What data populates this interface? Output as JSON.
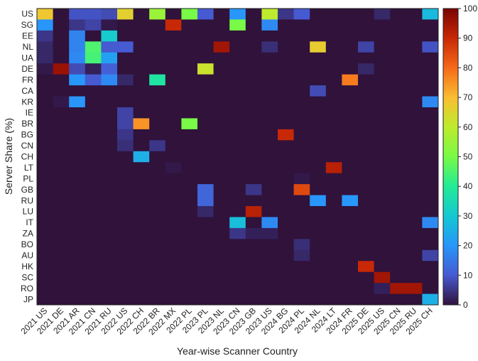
{
  "chart_data": {
    "type": "heatmap",
    "title": "",
    "xlabel": "Year-wise Scanner Country",
    "ylabel": "Server Share (%)",
    "x": [
      "2021 US",
      "2021 DE",
      "2021 AR",
      "2021 CN",
      "2021 RU",
      "2022 US",
      "2022 CH",
      "2022 BR",
      "2022 MX",
      "2022 PL",
      "2023 PL",
      "2023 NL",
      "2023 CN",
      "2023 GB",
      "2023 US",
      "2024 BG",
      "2024 PL",
      "2024 NL",
      "2024 LT",
      "2024 FR",
      "2025 DE",
      "2025 US",
      "2025 CN",
      "2025 RU",
      "2025 CH"
    ],
    "y": [
      "US",
      "SG",
      "EE",
      "NL",
      "UA",
      "DE",
      "FR",
      "CA",
      "KR",
      "IE",
      "BR",
      "BG",
      "CN",
      "CH",
      "LT",
      "PL",
      "GB",
      "RU",
      "LU",
      "IT",
      "ZA",
      "BO",
      "AU",
      "HK",
      "SC",
      "RO",
      "JP"
    ],
    "colorbar": {
      "range": [
        0,
        100
      ],
      "ticks": [
        0,
        10,
        20,
        30,
        40,
        50,
        60,
        70,
        80,
        90,
        100
      ],
      "colormap": "turbo"
    },
    "values": [
      [
        68,
        0,
        9,
        9,
        8,
        66,
        0,
        55,
        0,
        50,
        10,
        0,
        20,
        0,
        60,
        5,
        10,
        0,
        0,
        0,
        0,
        3,
        0,
        0,
        27
      ],
      [
        20,
        0,
        5,
        7,
        1,
        0,
        0,
        0,
        90,
        0,
        0,
        0,
        50,
        0,
        18,
        0,
        0,
        0,
        0,
        0,
        0,
        0,
        0,
        0,
        0
      ],
      [
        5,
        0,
        17,
        0,
        31,
        0,
        0,
        0,
        0,
        0,
        0,
        0,
        0,
        0,
        0,
        0,
        0,
        0,
        0,
        0,
        0,
        0,
        0,
        0,
        0
      ],
      [
        3,
        0,
        17,
        45,
        10,
        10,
        0,
        0,
        0,
        0,
        0,
        95,
        0,
        0,
        4,
        0,
        0,
        67,
        0,
        0,
        7,
        0,
        0,
        0,
        9
      ],
      [
        3,
        0,
        18,
        44,
        22,
        0,
        0,
        0,
        0,
        0,
        0,
        0,
        0,
        0,
        0,
        0,
        0,
        0,
        0,
        0,
        0,
        0,
        0,
        0,
        0
      ],
      [
        1,
        96,
        8,
        2,
        11,
        0,
        0,
        0,
        0,
        0,
        62,
        0,
        0,
        0,
        0,
        0,
        0,
        0,
        0,
        0,
        3,
        0,
        0,
        0,
        0
      ],
      [
        0,
        0,
        20,
        10,
        18,
        3,
        0,
        38,
        0,
        0,
        0,
        0,
        0,
        0,
        0,
        0,
        0,
        0,
        0,
        78,
        0,
        0,
        0,
        0,
        0
      ],
      [
        0,
        0,
        0,
        0,
        0,
        0,
        0,
        0,
        0,
        0,
        0,
        0,
        0,
        0,
        0,
        0,
        0,
        8,
        0,
        0,
        0,
        0,
        0,
        0,
        0
      ],
      [
        0,
        1,
        20,
        0,
        0,
        0,
        0,
        0,
        0,
        0,
        0,
        0,
        0,
        0,
        0,
        0,
        0,
        0,
        0,
        0,
        0,
        0,
        0,
        0,
        18
      ],
      [
        0,
        0,
        0,
        0,
        0,
        7,
        0,
        0,
        0,
        0,
        0,
        0,
        0,
        0,
        0,
        0,
        0,
        0,
        0,
        0,
        0,
        0,
        0,
        0,
        0
      ],
      [
        0,
        0,
        0,
        0,
        0,
        7,
        75,
        0,
        0,
        50,
        0,
        0,
        0,
        0,
        0,
        0,
        0,
        0,
        0,
        0,
        0,
        0,
        0,
        0,
        0
      ],
      [
        0,
        0,
        0,
        0,
        0,
        5,
        0,
        0,
        0,
        0,
        0,
        0,
        0,
        0,
        0,
        90,
        0,
        0,
        0,
        0,
        0,
        0,
        0,
        0,
        0
      ],
      [
        0,
        0,
        0,
        0,
        0,
        4,
        0,
        5,
        0,
        0,
        0,
        0,
        0,
        0,
        0,
        0,
        0,
        0,
        0,
        0,
        0,
        0,
        0,
        0,
        0
      ],
      [
        0,
        0,
        0,
        0,
        0,
        0,
        25,
        0,
        0,
        0,
        0,
        0,
        0,
        0,
        0,
        0,
        0,
        0,
        0,
        0,
        0,
        0,
        0,
        0,
        0
      ],
      [
        0,
        0,
        0,
        0,
        0,
        0,
        0,
        0,
        1,
        0,
        0,
        0,
        0,
        0,
        0,
        0,
        0,
        0,
        92,
        0,
        0,
        0,
        0,
        0,
        0
      ],
      [
        0,
        0,
        0,
        0,
        0,
        0,
        0,
        0,
        0,
        0,
        0,
        0,
        0,
        0,
        0,
        0,
        1,
        0,
        0,
        0,
        0,
        0,
        0,
        0,
        0
      ],
      [
        0,
        0,
        0,
        0,
        0,
        0,
        0,
        0,
        0,
        0,
        12,
        0,
        0,
        5,
        0,
        0,
        85,
        0,
        0,
        0,
        0,
        0,
        0,
        0,
        0
      ],
      [
        0,
        0,
        0,
        0,
        0,
        0,
        0,
        0,
        0,
        0,
        12,
        0,
        0,
        0,
        0,
        0,
        0,
        20,
        0,
        20,
        0,
        0,
        0,
        0,
        0
      ],
      [
        0,
        0,
        0,
        0,
        0,
        0,
        0,
        0,
        0,
        0,
        3,
        0,
        0,
        92,
        0,
        0,
        0,
        0,
        0,
        0,
        0,
        0,
        0,
        0,
        0
      ],
      [
        0,
        0,
        0,
        0,
        0,
        0,
        0,
        0,
        0,
        0,
        0,
        0,
        28,
        0,
        18,
        0,
        0,
        0,
        0,
        0,
        0,
        0,
        0,
        0,
        18
      ],
      [
        0,
        0,
        0,
        0,
        0,
        0,
        0,
        0,
        0,
        0,
        0,
        0,
        5,
        2,
        2,
        0,
        0,
        0,
        0,
        0,
        0,
        0,
        0,
        0,
        0
      ],
      [
        0,
        0,
        0,
        0,
        0,
        0,
        0,
        0,
        0,
        0,
        0,
        0,
        0,
        0,
        0,
        0,
        4,
        0,
        0,
        0,
        0,
        0,
        0,
        0,
        0
      ],
      [
        0,
        0,
        0,
        0,
        0,
        0,
        0,
        0,
        0,
        0,
        0,
        0,
        0,
        0,
        0,
        0,
        3,
        0,
        0,
        0,
        0,
        0,
        0,
        0,
        7
      ],
      [
        0,
        0,
        0,
        0,
        0,
        0,
        0,
        0,
        0,
        0,
        0,
        0,
        0,
        0,
        0,
        0,
        0,
        0,
        0,
        0,
        90,
        0,
        0,
        0,
        0
      ],
      [
        0,
        0,
        0,
        0,
        0,
        0,
        0,
        0,
        0,
        0,
        0,
        0,
        0,
        0,
        0,
        0,
        0,
        0,
        0,
        0,
        0,
        95,
        0,
        0,
        0
      ],
      [
        0,
        0,
        0,
        0,
        0,
        0,
        0,
        0,
        0,
        0,
        0,
        0,
        0,
        0,
        0,
        0,
        0,
        0,
        0,
        0,
        0,
        2,
        95,
        95,
        0
      ],
      [
        0,
        0,
        0,
        0,
        0,
        0,
        0,
        0,
        0,
        0,
        0,
        0,
        0,
        0,
        0,
        0,
        0,
        0,
        0,
        0,
        0,
        0,
        0,
        0,
        25
      ]
    ]
  }
}
